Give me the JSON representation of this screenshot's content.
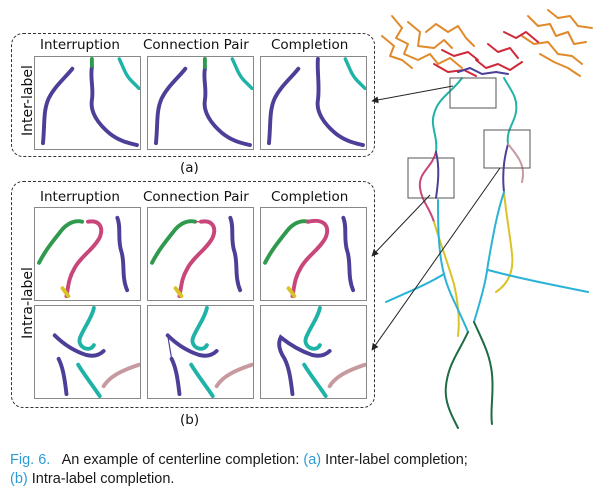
{
  "panel_a": {
    "row_label": "Inter-label",
    "columns": [
      "Interruption",
      "Connection Pair",
      "Completion"
    ],
    "sublabel": "(a)"
  },
  "panel_b": {
    "row_label": "Intra-label",
    "columns": [
      "Interruption",
      "Connection Pair",
      "Completion"
    ],
    "sublabel": "(b)"
  },
  "caption": {
    "fig_label": "Fig. 6.",
    "text_1": "An example of centerline completion:",
    "a_marker": "(a)",
    "text_2": "Inter-label completion;",
    "b_marker": "(b)",
    "text_3": "Intra-label completion."
  },
  "colors": {
    "purple": "#4b3f98",
    "teal": "#1fb3a8",
    "green": "#2f9a4d",
    "pink": "#c8467a",
    "rose": "#c79a9f",
    "orange": "#e08a2a",
    "red": "#cf2a3a",
    "yellow": "#d9c327",
    "cyan": "#2ab3d6",
    "darkgreen": "#1e6b45",
    "caption_blue": "#2e9bd6"
  }
}
